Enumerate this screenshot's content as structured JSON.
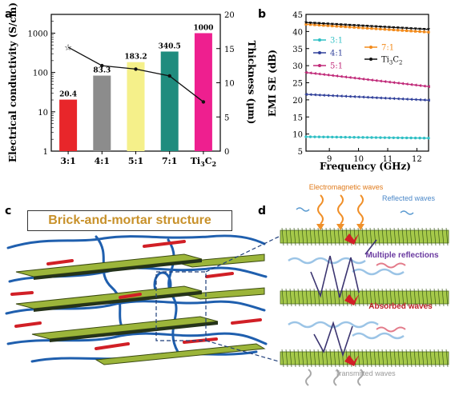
{
  "panel_labels": {
    "a": "a",
    "b": "b",
    "c": "c",
    "d": "d"
  },
  "chart_data": [
    {
      "type": "bar",
      "panel": "a",
      "categories": [
        "3:1",
        "4:1",
        "5:1",
        "7:1",
        "Ti3C2"
      ],
      "values": [
        20.4,
        83.3,
        183.2,
        340.5,
        1000
      ],
      "value_labels": [
        "20.4",
        "83.3",
        "183.2",
        "340.5",
        "1000"
      ],
      "bar_colors": [
        "#e8262a",
        "#8c8c8c",
        "#f5f08a",
        "#1f8c7e",
        "#ee1f8f"
      ],
      "ylabel": "Electrical conductivity (S/cm)",
      "ylim": [
        1,
        3000
      ],
      "yscale": "log",
      "yticks": [
        "1",
        "10",
        "100",
        "1000"
      ],
      "y2label": "Thickness (μm)",
      "y2lim": [
        0,
        20
      ],
      "y2ticks": [
        "0",
        "5",
        "10",
        "15",
        "20"
      ],
      "thickness_series": {
        "values": [
          15.2,
          12.5,
          12.0,
          11.0,
          7.2
        ],
        "color": "#111111"
      }
    },
    {
      "type": "line",
      "panel": "b",
      "xlabel": "Frequency (GHz)",
      "ylabel": "EMI SE (dB)",
      "xlim": [
        8.2,
        12.4
      ],
      "ylim": [
        5,
        45
      ],
      "xticks": [
        "8",
        "9",
        "10",
        "11",
        "12"
      ],
      "yticks": [
        "5",
        "10",
        "15",
        "20",
        "25",
        "30",
        "35",
        "40",
        "45"
      ],
      "series": [
        {
          "name": "3:1",
          "color": "#2fbfc4",
          "marker": "circle",
          "start": 9.2,
          "end": 8.8
        },
        {
          "name": "4:1",
          "color": "#2f3f9a",
          "marker": "triangle-left",
          "start": 21.6,
          "end": 19.9
        },
        {
          "name": "5:1",
          "color": "#c02878",
          "marker": "triangle-left",
          "start": 28.0,
          "end": 23.9
        },
        {
          "name": "7:1",
          "color": "#f28a1a",
          "marker": "square",
          "start": 42.1,
          "end": 39.8
        },
        {
          "name": "Ti3C2",
          "color": "#111111",
          "marker": "triangle-down",
          "start": 42.6,
          "end": 40.6
        }
      ]
    }
  ],
  "legend_b": [
    {
      "text": "3:1",
      "color": "#2fbfc4"
    },
    {
      "text": "4:1",
      "color": "#2f3f9a"
    },
    {
      "text": "5:1",
      "color": "#c02878"
    },
    {
      "text": "7:1",
      "color": "#f28a1a"
    },
    {
      "text": "Ti",
      "sub": "3",
      "text2": "C",
      "sub2": "2",
      "color": "#111111"
    }
  ],
  "illustration_c": {
    "title": "Brick-and-mortar structure"
  },
  "illustration_d": {
    "incident": "Electromagnetic waves",
    "reflected": "Reflected waves",
    "multiple": "Multiple reflections",
    "absorbed": "Absorbed waves",
    "transmitted": "Transmitted waves"
  }
}
